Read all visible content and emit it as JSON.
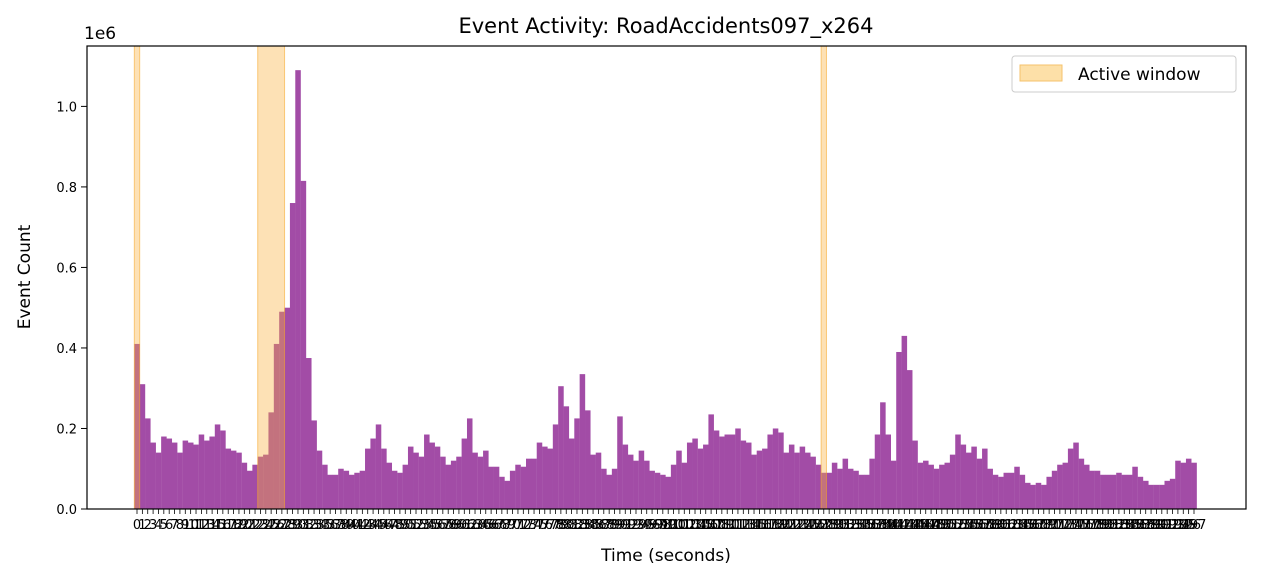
{
  "chart_data": {
    "type": "bar",
    "title": "Event Activity: RoadAccidents097_x264",
    "xlabel": "Time (seconds)",
    "ylabel": "Event Count",
    "y_scale_label": "1e6",
    "ylim": [
      0,
      1150000
    ],
    "y_ticks": [
      "0.0",
      "0.2",
      "0.4",
      "0.6",
      "0.8",
      "1.0"
    ],
    "bar_color": "#a24ca6",
    "highlight_color": "#fde0a8",
    "grid": false,
    "legend": {
      "position": "top-right",
      "label": "Active window"
    },
    "active_windows": [
      [
        0,
        1
      ],
      [
        23,
        28
      ],
      [
        128,
        129
      ]
    ],
    "x_start": 0,
    "values": [
      410000,
      310000,
      225000,
      165000,
      140000,
      180000,
      175000,
      165000,
      140000,
      170000,
      165000,
      160000,
      185000,
      170000,
      180000,
      210000,
      195000,
      150000,
      145000,
      140000,
      115000,
      95000,
      110000,
      130000,
      135000,
      240000,
      410000,
      490000,
      500000,
      760000,
      1090000,
      815000,
      375000,
      220000,
      145000,
      110000,
      85000,
      85000,
      100000,
      95000,
      85000,
      90000,
      95000,
      150000,
      175000,
      210000,
      150000,
      115000,
      95000,
      90000,
      110000,
      155000,
      140000,
      130000,
      185000,
      165000,
      155000,
      130000,
      110000,
      120000,
      130000,
      175000,
      225000,
      140000,
      130000,
      145000,
      105000,
      105000,
      80000,
      70000,
      95000,
      110000,
      105000,
      125000,
      125000,
      165000,
      155000,
      150000,
      210000,
      305000,
      255000,
      175000,
      225000,
      335000,
      245000,
      135000,
      140000,
      100000,
      85000,
      100000,
      230000,
      160000,
      135000,
      120000,
      145000,
      120000,
      95000,
      90000,
      85000,
      80000,
      110000,
      145000,
      115000,
      165000,
      175000,
      150000,
      160000,
      235000,
      195000,
      180000,
      185000,
      185000,
      200000,
      170000,
      165000,
      135000,
      145000,
      150000,
      185000,
      200000,
      190000,
      140000,
      160000,
      140000,
      155000,
      140000,
      130000,
      110000,
      90000,
      90000,
      115000,
      100000,
      125000,
      100000,
      95000,
      85000,
      85000,
      125000,
      185000,
      265000,
      185000,
      120000,
      390000,
      430000,
      345000,
      170000,
      115000,
      120000,
      110000,
      100000,
      110000,
      115000,
      135000,
      185000,
      160000,
      140000,
      155000,
      125000,
      150000,
      100000,
      85000,
      80000,
      90000,
      90000,
      105000,
      85000,
      65000,
      60000,
      65000,
      60000,
      80000,
      95000,
      110000,
      115000,
      150000,
      165000,
      125000,
      110000,
      95000,
      95000,
      85000,
      85000,
      85000,
      90000,
      85000,
      85000,
      105000,
      80000,
      70000,
      60000,
      60000,
      60000,
      70000,
      75000,
      120000,
      115000,
      125000,
      115000
    ]
  }
}
